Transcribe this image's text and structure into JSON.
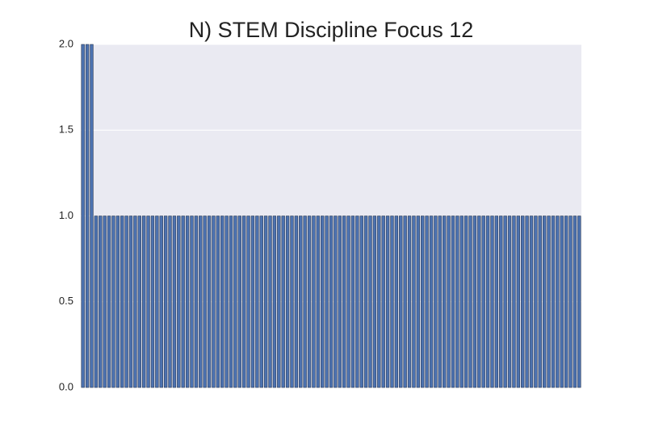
{
  "chart_data": {
    "type": "bar",
    "title": "N) STEM Discipline Focus 12",
    "categories": [
      null,
      null,
      null,
      null,
      null,
      null,
      null,
      null,
      null,
      null,
      null,
      null,
      null,
      null,
      null,
      null,
      null,
      null,
      null,
      null,
      null,
      null,
      null,
      null,
      null,
      null,
      null,
      null,
      null,
      null,
      null,
      null,
      null,
      null,
      null,
      null,
      null,
      null,
      null,
      null,
      null,
      null,
      null,
      null,
      null,
      null,
      null,
      null,
      null,
      null,
      null,
      null,
      null,
      null,
      null,
      null,
      null,
      null,
      null,
      null,
      null,
      null,
      null,
      null,
      null,
      null,
      null,
      null,
      null,
      null,
      null,
      null,
      null,
      null,
      null,
      null,
      null,
      null,
      null,
      null,
      null,
      null,
      null,
      null,
      null,
      null,
      null,
      null,
      null,
      null,
      null,
      null,
      null,
      null,
      null,
      null,
      null,
      null,
      null,
      null,
      null,
      null,
      null,
      null,
      null,
      null,
      null,
      null,
      null,
      null,
      null,
      null,
      null,
      null,
      null
    ],
    "values": [
      2,
      2,
      2,
      1,
      1,
      1,
      1,
      1,
      1,
      1,
      1,
      1,
      1,
      1,
      1,
      1,
      1,
      1,
      1,
      1,
      1,
      1,
      1,
      1,
      1,
      1,
      1,
      1,
      1,
      1,
      1,
      1,
      1,
      1,
      1,
      1,
      1,
      1,
      1,
      1,
      1,
      1,
      1,
      1,
      1,
      1,
      1,
      1,
      1,
      1,
      1,
      1,
      1,
      1,
      1,
      1,
      1,
      1,
      1,
      1,
      1,
      1,
      1,
      1,
      1,
      1,
      1,
      1,
      1,
      1,
      1,
      1,
      1,
      1,
      1,
      1,
      1,
      1,
      1,
      1,
      1,
      1,
      1,
      1,
      1,
      1,
      1,
      1,
      1,
      1,
      1,
      1,
      1,
      1,
      1,
      1,
      1,
      1,
      1,
      1,
      1,
      1,
      1,
      1,
      1,
      1,
      1,
      1,
      1,
      1,
      1,
      1,
      1,
      1,
      1
    ],
    "color": "#4c72b0",
    "ylim": [
      0,
      2
    ],
    "yticks": [
      {
        "value": 0,
        "label": "0.0"
      },
      {
        "value": 0.5,
        "label": "0.5"
      },
      {
        "value": 1,
        "label": "1.0"
      },
      {
        "value": 1.5,
        "label": "1.5"
      },
      {
        "value": 2,
        "label": "2.0"
      }
    ],
    "grid": true
  }
}
